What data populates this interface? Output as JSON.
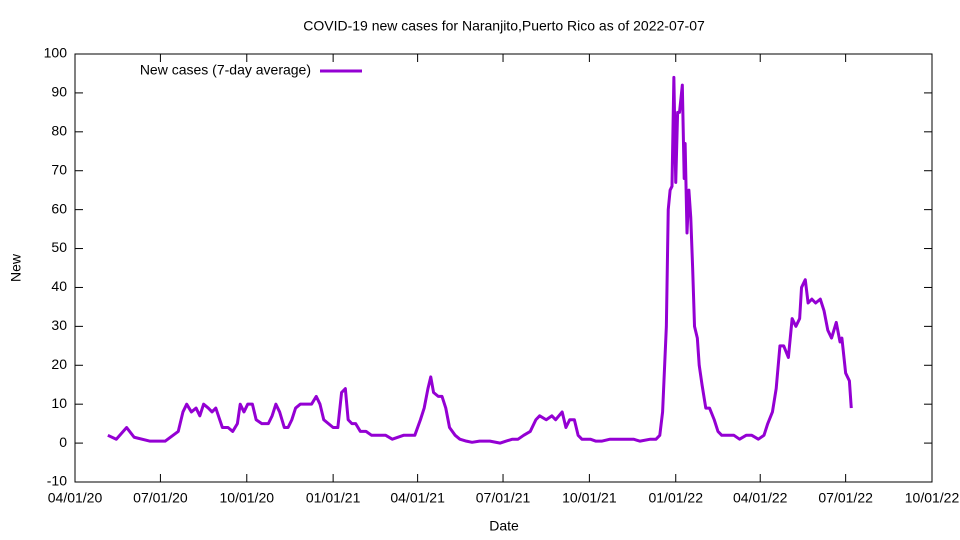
{
  "chart_data": {
    "type": "line",
    "title": "COVID-19 new cases for Naranjito,Puerto Rico as of 2022-07-07",
    "xlabel": "Date",
    "ylabel": "New",
    "legend": "top-left",
    "xlim": [
      "2020-04-01",
      "2022-10-01"
    ],
    "xticks": [
      {
        "value": "2020-04-01",
        "label": "04/01/20"
      },
      {
        "value": "2020-07-01",
        "label": "07/01/20"
      },
      {
        "value": "2020-10-01",
        "label": "10/01/20"
      },
      {
        "value": "2021-01-01",
        "label": "01/01/21"
      },
      {
        "value": "2021-04-01",
        "label": "04/01/21"
      },
      {
        "value": "2021-07-01",
        "label": "07/01/21"
      },
      {
        "value": "2021-10-01",
        "label": "10/01/21"
      },
      {
        "value": "2022-01-01",
        "label": "01/01/22"
      },
      {
        "value": "2022-04-01",
        "label": "04/01/22"
      },
      {
        "value": "2022-07-01",
        "label": "07/01/22"
      },
      {
        "value": "2022-10-01",
        "label": "10/01/22"
      }
    ],
    "ylim": [
      -10,
      100
    ],
    "yticks": [
      -10,
      0,
      10,
      20,
      30,
      40,
      50,
      60,
      70,
      80,
      90,
      100
    ],
    "x": [
      "2020-05-06",
      "2020-05-15",
      "2020-05-26",
      "2020-06-03",
      "2020-06-20",
      "2020-07-06",
      "2020-07-20",
      "2020-07-25",
      "2020-07-29",
      "2020-08-03",
      "2020-08-08",
      "2020-08-12",
      "2020-08-16",
      "2020-08-21",
      "2020-08-25",
      "2020-08-29",
      "2020-09-05",
      "2020-09-11",
      "2020-09-16",
      "2020-09-21",
      "2020-09-24",
      "2020-09-28",
      "2020-10-02",
      "2020-10-07",
      "2020-10-11",
      "2020-10-17",
      "2020-10-24",
      "2020-10-28",
      "2020-11-01",
      "2020-11-05",
      "2020-11-10",
      "2020-11-14",
      "2020-11-18",
      "2020-11-22",
      "2020-11-27",
      "2020-12-03",
      "2020-12-09",
      "2020-12-14",
      "2020-12-18",
      "2020-12-22",
      "2020-12-27",
      "2021-01-01",
      "2021-01-06",
      "2021-01-10",
      "2021-01-14",
      "2021-01-17",
      "2021-01-21",
      "2021-01-25",
      "2021-01-30",
      "2021-02-05",
      "2021-02-11",
      "2021-02-26",
      "2021-03-05",
      "2021-03-17",
      "2021-03-29",
      "2021-04-04",
      "2021-04-08",
      "2021-04-12",
      "2021-04-15",
      "2021-04-18",
      "2021-04-23",
      "2021-04-27",
      "2021-05-01",
      "2021-05-05",
      "2021-05-11",
      "2021-05-16",
      "2021-05-23",
      "2021-05-29",
      "2021-06-06",
      "2021-06-17",
      "2021-06-28",
      "2021-07-04",
      "2021-07-11",
      "2021-07-17",
      "2021-07-23",
      "2021-07-30",
      "2021-08-05",
      "2021-08-09",
      "2021-08-16",
      "2021-08-22",
      "2021-08-26",
      "2021-09-02",
      "2021-09-06",
      "2021-09-10",
      "2021-09-15",
      "2021-09-19",
      "2021-09-23",
      "2021-10-02",
      "2021-10-08",
      "2021-10-14",
      "2021-10-23",
      "2021-11-05",
      "2021-11-17",
      "2021-11-24",
      "2021-12-05",
      "2021-12-11",
      "2021-12-15",
      "2021-12-18",
      "2021-12-22",
      "2021-12-24",
      "2021-12-26",
      "2021-12-28",
      "2021-12-30",
      "2022-01-01",
      "2022-01-03",
      "2022-01-05",
      "2022-01-08",
      "2022-01-10",
      "2022-01-11",
      "2022-01-13",
      "2022-01-15",
      "2022-01-17",
      "2022-01-19",
      "2022-01-21",
      "2022-01-24",
      "2022-01-26",
      "2022-01-29",
      "2022-02-02",
      "2022-02-06",
      "2022-02-11",
      "2022-02-15",
      "2022-02-19",
      "2022-03-04",
      "2022-03-10",
      "2022-03-17",
      "2022-03-23",
      "2022-03-30",
      "2022-04-05",
      "2022-04-09",
      "2022-04-14",
      "2022-04-18",
      "2022-04-22",
      "2022-04-26",
      "2022-05-01",
      "2022-05-05",
      "2022-05-09",
      "2022-05-13",
      "2022-05-15",
      "2022-05-19",
      "2022-05-22",
      "2022-05-26",
      "2022-05-30",
      "2022-06-04",
      "2022-06-08",
      "2022-06-12",
      "2022-06-16",
      "2022-06-21",
      "2022-06-25",
      "2022-06-27",
      "2022-07-01",
      "2022-07-05",
      "2022-07-07"
    ],
    "series": [
      {
        "name": "New cases (7-day average)",
        "color": "#9400d3",
        "values": [
          2,
          1,
          4,
          1.5,
          0.5,
          0.5,
          3,
          8,
          10,
          8,
          9,
          7,
          10,
          9,
          8,
          9,
          4,
          4,
          3,
          5,
          10,
          8,
          10,
          10,
          6,
          5,
          5,
          7,
          10,
          8,
          4,
          4,
          6,
          9,
          10,
          10,
          10,
          12,
          10,
          6,
          5,
          4,
          4,
          13,
          14,
          6,
          5,
          5,
          3,
          3,
          2,
          2,
          1,
          2,
          2,
          6,
          9,
          14,
          17,
          13,
          12,
          12,
          9,
          4,
          2,
          1,
          0.5,
          0.2,
          0.5,
          0.5,
          0,
          0.5,
          1,
          1,
          2,
          3,
          6,
          7,
          6,
          7,
          6,
          8,
          4,
          6,
          6,
          2,
          1,
          1,
          0.5,
          0.5,
          1,
          1,
          1,
          0.5,
          1,
          1,
          2,
          8,
          30,
          60,
          65,
          66,
          94,
          67,
          85,
          85,
          92,
          68,
          77,
          54,
          65,
          58,
          45,
          30,
          27,
          20,
          15,
          9,
          9,
          6,
          3,
          2,
          2,
          1,
          2,
          2,
          1,
          2,
          5,
          8,
          14,
          25,
          25,
          22,
          32,
          30,
          32,
          40,
          42,
          36,
          37,
          36,
          37,
          34,
          29,
          27,
          31,
          26,
          27,
          18,
          16,
          9
        ]
      }
    ]
  }
}
